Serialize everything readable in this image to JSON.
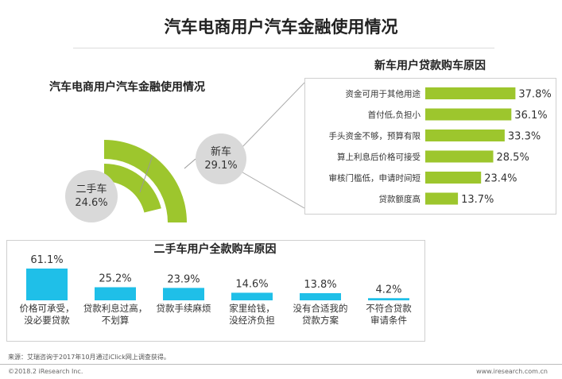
{
  "page": {
    "title": "汽车电商用户汽车金融使用情况",
    "source": "来源：艾瑞咨询于2017年10月通过iClick网上调查获得。",
    "copyright": "©2018.2 iResearch Inc.",
    "website": "www.iresearch.com.cn"
  },
  "colors": {
    "green": "#9dc62d",
    "blue": "#1fbfe8",
    "bubble": "#d9d9d9",
    "text": "#333333"
  },
  "chart_data": [
    {
      "type": "pie",
      "title": "汽车电商用户汽车金融使用情况",
      "categories": [
        "新车",
        "二手车"
      ],
      "values": [
        29.1,
        24.6
      ],
      "labels": [
        "新车\n29.1%",
        "二手车\n24.6%"
      ],
      "unit": "%"
    },
    {
      "type": "bar",
      "orientation": "horizontal",
      "title": "新车用户贷款购车原因",
      "categories": [
        "资金可用于其他用途",
        "首付低,负担小",
        "手头资金不够，预算有限",
        "算上利息后价格可接受",
        "审核门槛低，申请时间短",
        "贷款额度高"
      ],
      "values": [
        37.8,
        36.1,
        33.3,
        28.5,
        23.4,
        13.7
      ],
      "value_labels": [
        "37.8%",
        "36.1%",
        "33.3%",
        "28.5%",
        "23.4%",
        "13.7%"
      ],
      "unit": "%"
    },
    {
      "type": "bar",
      "orientation": "vertical",
      "title": "二手车用户全款购车原因",
      "categories": [
        "价格可承受，没必要贷款",
        "贷款利息过高，不划算",
        "贷款手续麻烦",
        "家里给钱，没经济负担",
        "没有合适我的贷款方案",
        "不符合贷款审请条件"
      ],
      "category_lines": [
        [
          "价格可承受，",
          "没必要贷款"
        ],
        [
          "贷款利息过高，",
          "不划算"
        ],
        [
          "贷款手续麻烦"
        ],
        [
          "家里给钱，",
          "没经济负担"
        ],
        [
          "没有合适我的",
          "贷款方案"
        ],
        [
          "不符合贷款",
          "审请条件"
        ]
      ],
      "values": [
        61.1,
        25.2,
        23.9,
        14.6,
        13.8,
        4.2
      ],
      "value_labels": [
        "61.1%",
        "25.2%",
        "23.9%",
        "14.6%",
        "13.8%",
        "4.2%"
      ],
      "unit": "%"
    }
  ]
}
